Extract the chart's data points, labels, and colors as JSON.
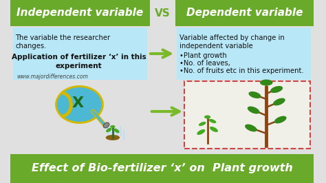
{
  "bg_color": "#e0e0e0",
  "header_green": "#6aaa2a",
  "header_text_color": "#ffffff",
  "box_left_bg": "#b8e8f8",
  "box_right_bg": "#b8e8f8",
  "footer_bg": "#6aaa2a",
  "footer_text": "Effect of Bio-fertilizer ‘x’ on  Plant growth",
  "footer_text_color": "#ffffff",
  "title_left": "Independent variable",
  "title_right": "Dependent variable",
  "vs_text": "VS",
  "left_body_line1": "The variable the researcher",
  "left_body_line2": "changes.",
  "left_bold_line1": "Application of fertilizer ‘x’ in this",
  "left_bold_line2": "experiment",
  "right_body_line1": "Variable affected by change in",
  "right_body_line2": "independent variable",
  "right_bullet1": "•Plant growth",
  "right_bullet2": "•No. of leaves,",
  "right_bullet3": "•No. of fruits etc in this experiment.",
  "watermark": "www.majordifferences.com",
  "arrow_color": "#7ab929",
  "can_body_color": "#4db8d4",
  "can_rim_color": "#d4b800",
  "plant_green": "#44aa22",
  "plant_dark": "#33881a",
  "trunk_color": "#8B4513",
  "dashed_box_edge": "#cc4444",
  "dashed_box_face": "#f0f0e8"
}
